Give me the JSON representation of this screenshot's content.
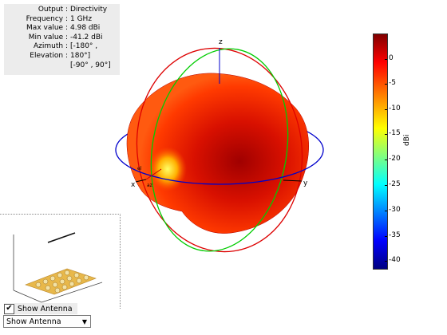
{
  "info": {
    "rows": [
      {
        "label": "Output :",
        "value": "Directivity"
      },
      {
        "label": "Frequency :",
        "value": "1 GHz"
      },
      {
        "label": "Max value :",
        "value": "4.98 dBi"
      },
      {
        "label": "Min value :",
        "value": "-41.2 dBi"
      },
      {
        "label": "Azimuth :",
        "value": "[-180° ,"
      },
      {
        "label": "Elevation :",
        "value": "180°]"
      },
      {
        "label": "",
        "value": "[-90° , 90°]"
      }
    ]
  },
  "axes": {
    "x": "x",
    "y": "y",
    "z": "z",
    "az": "az",
    "el": "el"
  },
  "colorbar": {
    "unit": "dBi",
    "ticks": [
      "0",
      "-5",
      "-10",
      "-15",
      "-20",
      "-25",
      "-30",
      "-35",
      "-40"
    ]
  },
  "controls": {
    "show_antenna_label": "Show Antenna",
    "show_antenna_checked": "✔",
    "dropdown_value": "Show Antenna"
  }
}
